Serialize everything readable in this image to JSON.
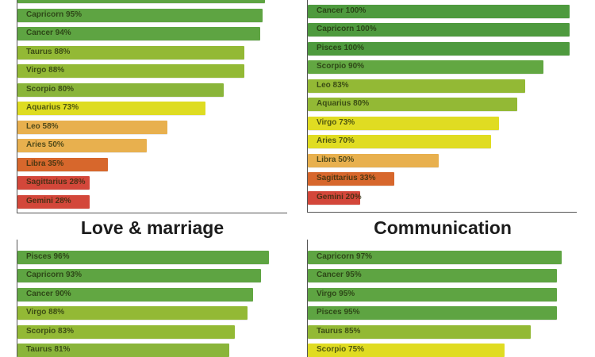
{
  "chart_data": [
    {
      "type": "bar",
      "title": "",
      "orientation": "horizontal",
      "xlim": [
        0,
        100
      ],
      "bars": [
        {
          "label": "",
          "value": 96,
          "color": "#5ea442"
        },
        {
          "label": "Capricorn 95%",
          "value": 95,
          "color": "#5ea442"
        },
        {
          "label": "Cancer 94%",
          "value": 94,
          "color": "#5ea442"
        },
        {
          "label": "Taurus 88%",
          "value": 88,
          "color": "#93b935"
        },
        {
          "label": "Virgo 88%",
          "value": 88,
          "color": "#93b935"
        },
        {
          "label": "Scorpio 80%",
          "value": 80,
          "color": "#8ab53a"
        },
        {
          "label": "Aquarius 73%",
          "value": 73,
          "color": "#dedc22"
        },
        {
          "label": "Leo 58%",
          "value": 58,
          "color": "#e8b04e"
        },
        {
          "label": "Aries 50%",
          "value": 50,
          "color": "#e8b04e"
        },
        {
          "label": "Libra 35%",
          "value": 35,
          "color": "#d7672c"
        },
        {
          "label": "Sagittarius 28%",
          "value": 28,
          "color": "#d3473a"
        },
        {
          "label": "Gemini 28%",
          "value": 28,
          "color": "#d3473a"
        }
      ]
    },
    {
      "type": "bar",
      "title": "",
      "orientation": "horizontal",
      "xlim": [
        0,
        100
      ],
      "bars": [
        {
          "label": "",
          "value": 100,
          "color": "#4e9a3e"
        },
        {
          "label": "Cancer 100%",
          "value": 100,
          "color": "#4e9a3e"
        },
        {
          "label": "Capricorn 100%",
          "value": 100,
          "color": "#4e9a3e"
        },
        {
          "label": "Pisces 100%",
          "value": 100,
          "color": "#4e9a3e"
        },
        {
          "label": "Scorpio 90%",
          "value": 90,
          "color": "#62a742"
        },
        {
          "label": "Leo 83%",
          "value": 83,
          "color": "#93b935"
        },
        {
          "label": "Aquarius 80%",
          "value": 80,
          "color": "#93b935"
        },
        {
          "label": "Virgo 73%",
          "value": 73,
          "color": "#e0dc22"
        },
        {
          "label": "Aries 70%",
          "value": 70,
          "color": "#e0dc22"
        },
        {
          "label": "Libra 50%",
          "value": 50,
          "color": "#e8b04e"
        },
        {
          "label": "Sagittarius 33%",
          "value": 33,
          "color": "#d7672c"
        },
        {
          "label": "Gemini 20%",
          "value": 20,
          "color": "#d3473a"
        }
      ]
    },
    {
      "type": "bar",
      "title": "Love & marriage",
      "orientation": "horizontal",
      "xlim": [
        0,
        100
      ],
      "bars": [
        {
          "label": "Pisces 96%",
          "value": 96,
          "color": "#5ea442"
        },
        {
          "label": "Capricorn 93%",
          "value": 93,
          "color": "#5ea442"
        },
        {
          "label": "Cancer 90%",
          "value": 90,
          "color": "#62a742"
        },
        {
          "label": "Virgo 88%",
          "value": 88,
          "color": "#93b935"
        },
        {
          "label": "Scorpio 83%",
          "value": 83,
          "color": "#93b935"
        },
        {
          "label": "Taurus 81%",
          "value": 81,
          "color": "#8ab53a"
        }
      ]
    },
    {
      "type": "bar",
      "title": "Communication",
      "orientation": "horizontal",
      "xlim": [
        0,
        100
      ],
      "bars": [
        {
          "label": "Capricorn 97%",
          "value": 97,
          "color": "#5ea442"
        },
        {
          "label": "Cancer 95%",
          "value": 95,
          "color": "#5ea442"
        },
        {
          "label": "Virgo 95%",
          "value": 95,
          "color": "#5ea442"
        },
        {
          "label": "Pisces 95%",
          "value": 95,
          "color": "#5ea442"
        },
        {
          "label": "Taurus 85%",
          "value": 85,
          "color": "#93b935"
        },
        {
          "label": "Scorpio 75%",
          "value": 75,
          "color": "#e0dc22"
        }
      ]
    }
  ]
}
